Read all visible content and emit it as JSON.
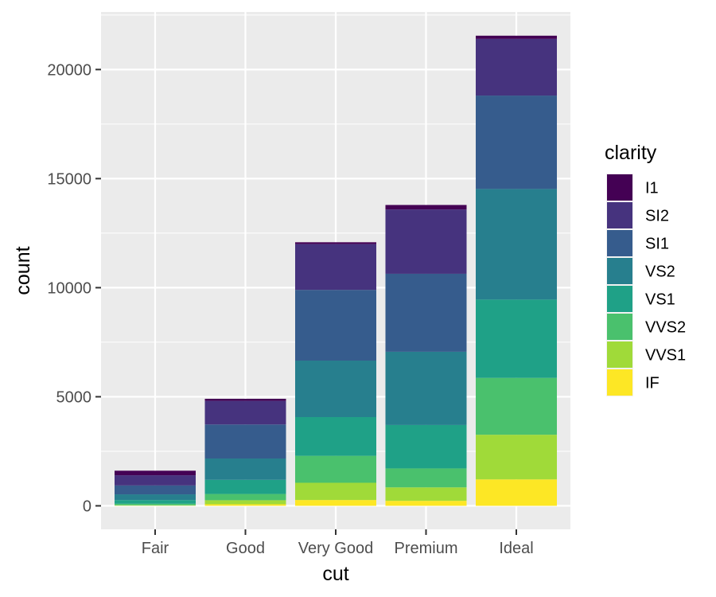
{
  "chart_data": {
    "type": "bar",
    "stacked": true,
    "xlabel": "cut",
    "ylabel": "count",
    "categories": [
      "Fair",
      "Good",
      "Very Good",
      "Premium",
      "Ideal"
    ],
    "ylim": [
      -1078,
      22640
    ],
    "yticks": [
      0,
      5000,
      10000,
      15000,
      20000
    ],
    "yticklabels": [
      "0",
      "5000",
      "10000",
      "15000",
      "20000"
    ],
    "grid": true,
    "legend": {
      "title": "clarity",
      "position": "right"
    },
    "series": [
      {
        "name": "I1",
        "color": "#440154",
        "values": [
          210,
          96,
          84,
          205,
          146
        ]
      },
      {
        "name": "SI2",
        "color": "#46337E",
        "values": [
          466,
          1081,
          2100,
          2949,
          2598
        ]
      },
      {
        "name": "SI1",
        "color": "#365C8D",
        "values": [
          408,
          1560,
          3240,
          3575,
          4282
        ]
      },
      {
        "name": "VS2",
        "color": "#277F8E",
        "values": [
          261,
          978,
          2591,
          3357,
          5071
        ]
      },
      {
        "name": "VS1",
        "color": "#1FA187",
        "values": [
          170,
          648,
          1775,
          1989,
          3589
        ]
      },
      {
        "name": "VVS2",
        "color": "#4AC16D",
        "values": [
          69,
          286,
          1235,
          870,
          2606
        ]
      },
      {
        "name": "VVS1",
        "color": "#A0DA39",
        "values": [
          17,
          186,
          789,
          616,
          2047
        ]
      },
      {
        "name": "IF",
        "color": "#FDE725",
        "values": [
          9,
          71,
          268,
          230,
          1212
        ]
      }
    ]
  }
}
